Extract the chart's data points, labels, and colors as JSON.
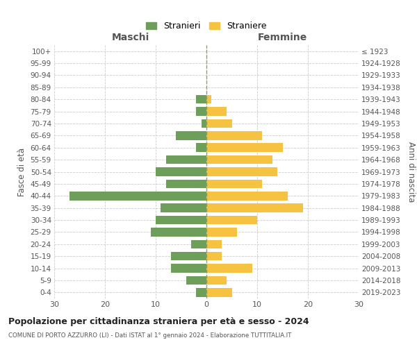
{
  "age_groups": [
    "100+",
    "95-99",
    "90-94",
    "85-89",
    "80-84",
    "75-79",
    "70-74",
    "65-69",
    "60-64",
    "55-59",
    "50-54",
    "45-49",
    "40-44",
    "35-39",
    "30-34",
    "25-29",
    "20-24",
    "15-19",
    "10-14",
    "5-9",
    "0-4"
  ],
  "birth_years": [
    "≤ 1923",
    "1924-1928",
    "1929-1933",
    "1934-1938",
    "1939-1943",
    "1944-1948",
    "1949-1953",
    "1954-1958",
    "1959-1963",
    "1964-1968",
    "1969-1973",
    "1974-1978",
    "1979-1983",
    "1984-1988",
    "1989-1993",
    "1994-1998",
    "1999-2003",
    "2004-2008",
    "2009-2013",
    "2014-2018",
    "2019-2023"
  ],
  "males": [
    0,
    0,
    0,
    0,
    2,
    2,
    1,
    6,
    2,
    8,
    10,
    8,
    27,
    9,
    10,
    11,
    3,
    7,
    7,
    4,
    2
  ],
  "females": [
    0,
    0,
    0,
    0,
    1,
    4,
    5,
    11,
    15,
    13,
    14,
    11,
    16,
    19,
    10,
    6,
    3,
    3,
    9,
    4,
    5
  ],
  "male_color": "#6d9e5a",
  "female_color": "#f5c242",
  "title": "Popolazione per cittadinanza straniera per età e sesso - 2024",
  "subtitle": "COMUNE DI PORTO AZZURRO (LI) - Dati ISTAT al 1° gennaio 2024 - Elaborazione TUTTITALIA.IT",
  "ylabel_left": "Fasce di età",
  "ylabel_right": "Anni di nascita",
  "xlabel_left": "Maschi",
  "xlabel_right": "Femmine",
  "legend_male": "Stranieri",
  "legend_female": "Straniere",
  "xlim": 30,
  "background_color": "#ffffff"
}
